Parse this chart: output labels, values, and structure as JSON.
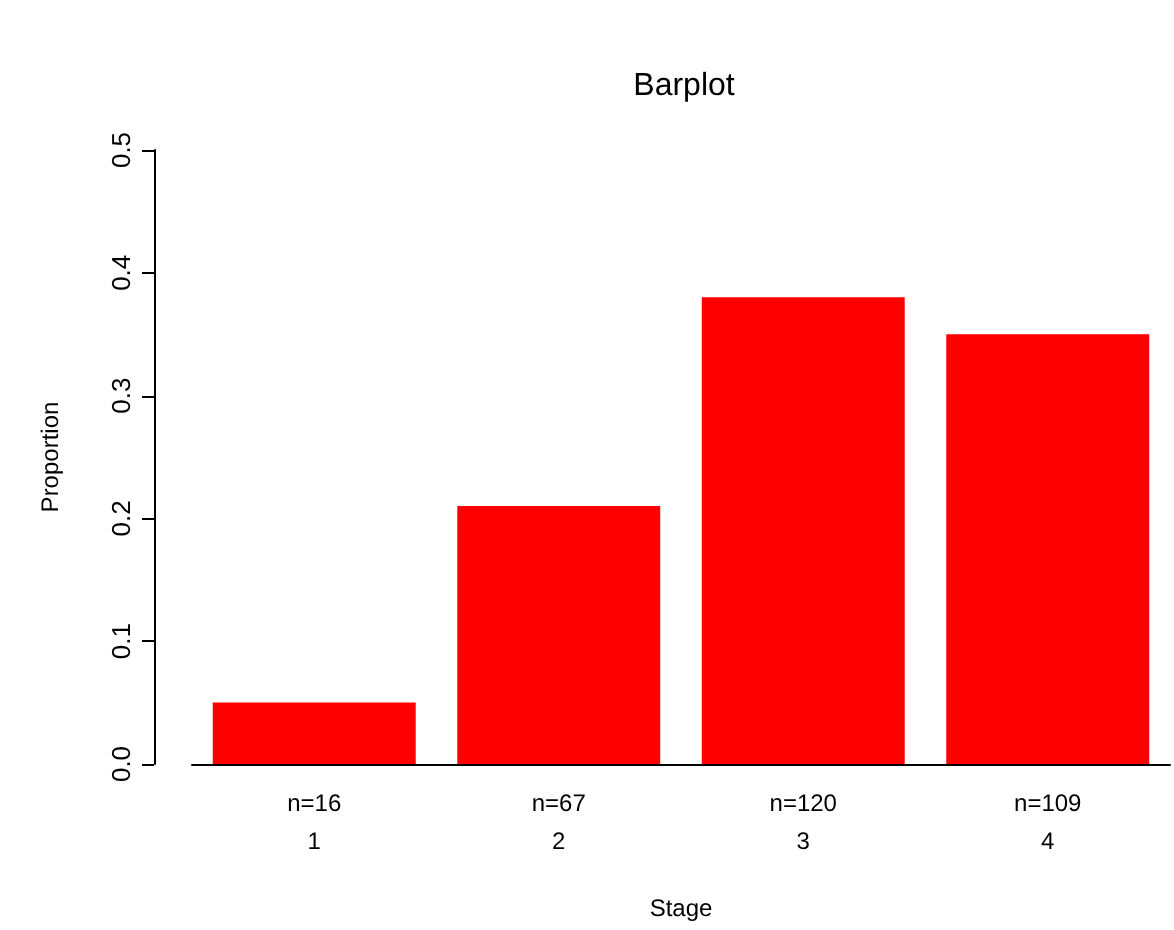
{
  "chart_data": {
    "type": "bar",
    "title": "Barplot",
    "xlabel": "Stage",
    "ylabel": "Proportion",
    "categories": [
      "n=16\n1",
      "n=67\n2",
      "n=120\n3",
      "n=109\n4"
    ],
    "values": [
      0.05,
      0.21,
      0.38,
      0.35
    ],
    "color": "#ff0000",
    "ylim": [
      0,
      0.5
    ],
    "yticks": [
      {
        "value": 0,
        "label": "0.0"
      },
      {
        "value": 0.1,
        "label": "0.1"
      },
      {
        "value": 0.2,
        "label": "0.2"
      },
      {
        "value": 0.3,
        "label": "0.3"
      },
      {
        "value": 0.4,
        "label": "0.4"
      },
      {
        "value": 0.5,
        "label": "0.5"
      }
    ],
    "grid": false
  }
}
